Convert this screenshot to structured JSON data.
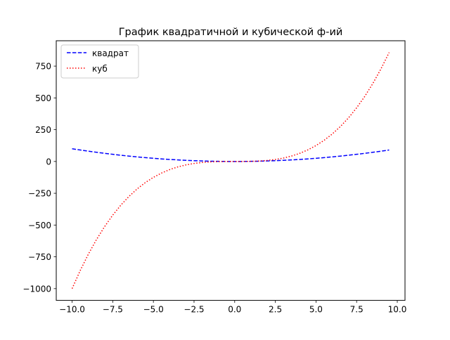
{
  "chart_data": {
    "type": "line",
    "title": "График квадратичной и кубической ф-ий",
    "xlabel": "",
    "ylabel": "",
    "xlim": [
      -10.975,
      10.475
    ],
    "ylim": [
      -1092.5,
      949.5
    ],
    "x_ticks": [
      -10.0,
      -7.5,
      -5.0,
      -2.5,
      0.0,
      2.5,
      5.0,
      7.5,
      10.0
    ],
    "x_tick_labels": [
      "−10.0",
      "−7.5",
      "−5.0",
      "−2.5",
      "0.0",
      "2.5",
      "5.0",
      "7.5",
      "10.0"
    ],
    "y_ticks": [
      -1000,
      -750,
      -500,
      -250,
      0,
      250,
      500,
      750
    ],
    "y_tick_labels": [
      "−1000",
      "−750",
      "−500",
      "−250",
      "0",
      "250",
      "500",
      "750"
    ],
    "grid": false,
    "legend": "top-left",
    "x": [
      -10.0,
      -9.5,
      -9.0,
      -8.5,
      -8.0,
      -7.5,
      -7.0,
      -6.5,
      -6.0,
      -5.5,
      -5.0,
      -4.5,
      -4.0,
      -3.5,
      -3.0,
      -2.5,
      -2.0,
      -1.5,
      -1.0,
      -0.5,
      0.0,
      0.5,
      1.0,
      1.5,
      2.0,
      2.5,
      3.0,
      3.5,
      4.0,
      4.5,
      5.0,
      5.5,
      6.0,
      6.5,
      7.0,
      7.5,
      8.0,
      8.5,
      9.0,
      9.5
    ],
    "series": [
      {
        "name": "квадрат",
        "color": "#0000ff",
        "style": "dashed",
        "values": [
          100.0,
          90.25,
          81.0,
          72.25,
          64.0,
          56.25,
          49.0,
          42.25,
          36.0,
          30.25,
          25.0,
          20.25,
          16.0,
          12.25,
          9.0,
          6.25,
          4.0,
          2.25,
          1.0,
          0.25,
          0.0,
          0.25,
          1.0,
          2.25,
          4.0,
          6.25,
          9.0,
          12.25,
          16.0,
          20.25,
          25.0,
          30.25,
          36.0,
          42.25,
          49.0,
          56.25,
          64.0,
          72.25,
          81.0,
          90.25
        ]
      },
      {
        "name": "куб",
        "color": "#ff0000",
        "style": "dotted",
        "values": [
          -1000.0,
          -857.375,
          -729.0,
          -614.125,
          -512.0,
          -421.875,
          -343.0,
          -274.625,
          -216.0,
          -166.375,
          -125.0,
          -91.125,
          -64.0,
          -42.875,
          -27.0,
          -15.625,
          -8.0,
          -3.375,
          -1.0,
          -0.125,
          0.0,
          0.125,
          1.0,
          3.375,
          8.0,
          15.625,
          27.0,
          42.875,
          64.0,
          91.125,
          125.0,
          166.375,
          216.0,
          274.625,
          343.0,
          421.875,
          512.0,
          614.125,
          729.0,
          857.375
        ]
      }
    ]
  }
}
